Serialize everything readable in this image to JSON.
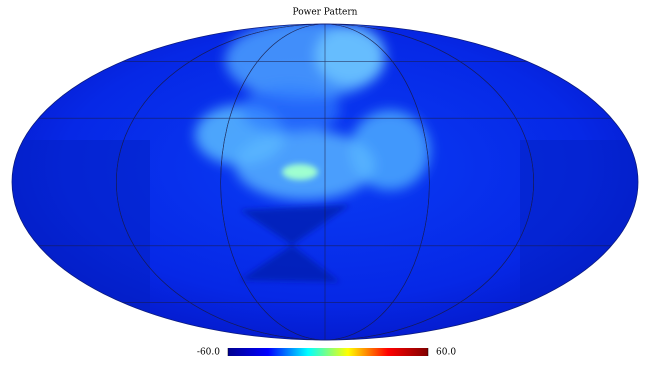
{
  "chart_data": {
    "type": "map",
    "projection": "mollweide",
    "title": "Power Pattern",
    "colorbar": {
      "colormap": "jet",
      "lim": [
        -60,
        60
      ],
      "ticks": [
        {
          "value": -60,
          "label": "-60.0"
        },
        {
          "value": 60,
          "label": "60.0"
        }
      ]
    },
    "graticule": true
  }
}
